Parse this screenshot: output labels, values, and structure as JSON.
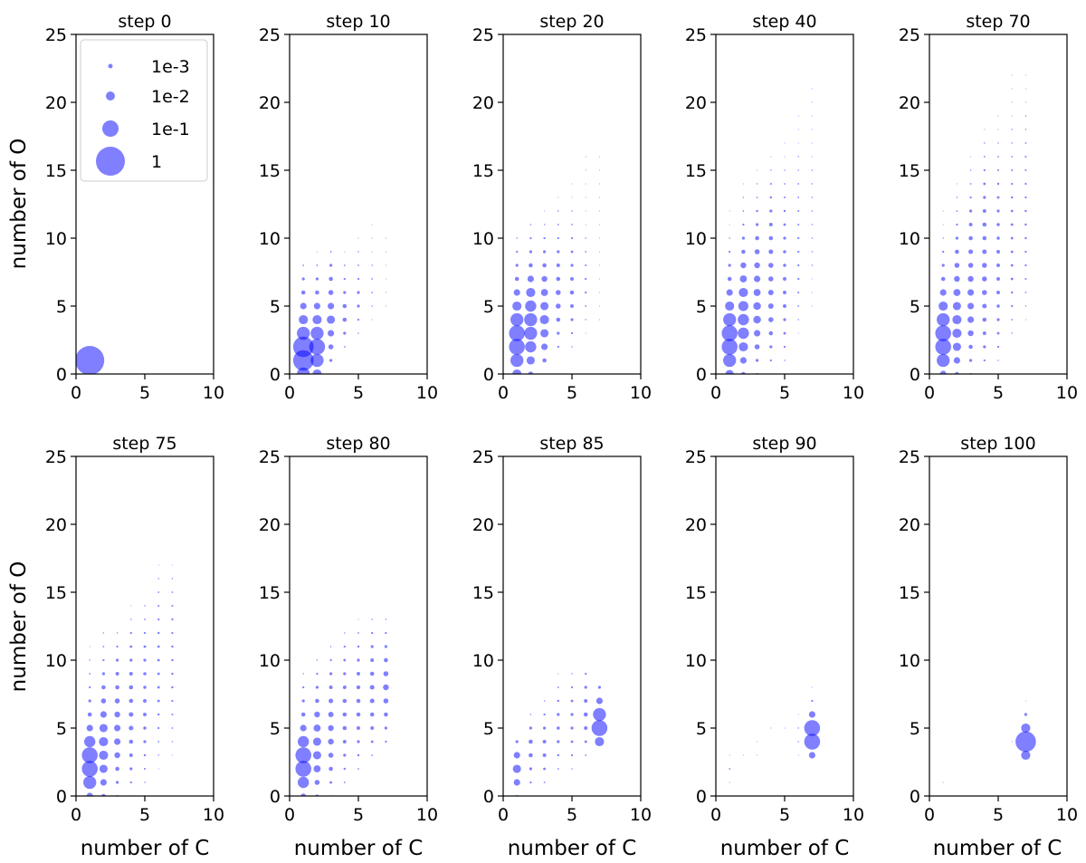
{
  "figure": {
    "ylabel": "number of O",
    "xlabel": "number of C",
    "legend": {
      "entries": [
        {
          "label": "1e-3",
          "value": 0.001
        },
        {
          "label": "1e-2",
          "value": 0.01
        },
        {
          "label": "1e-1",
          "value": 0.1
        },
        {
          "label": "1",
          "value": 1
        }
      ]
    },
    "marker_color": "#0000ff",
    "marker_opacity": 0.5
  },
  "chart_data": [
    {
      "type": "scatter",
      "title": "step 0",
      "xlim": [
        0,
        10
      ],
      "ylim": [
        0,
        25
      ],
      "xticks": [
        "0",
        "5",
        "10"
      ],
      "yticks": [
        "0",
        "5",
        "10",
        "15",
        "20",
        "25"
      ],
      "cols": [
        [
          1,
          1,
          [
            1
          ]
        ]
      ]
    },
    {
      "type": "scatter",
      "title": "step 10",
      "xlim": [
        0,
        10
      ],
      "ylim": [
        0,
        25
      ],
      "xticks": [
        "0",
        "5",
        "10"
      ],
      "yticks": [
        "0",
        "5",
        "10",
        "15",
        "20",
        "25"
      ],
      "cols": [
        [
          1,
          0,
          [
            0.2,
            0.5,
            0.5,
            0.2,
            0.1,
            0.05,
            0.02,
            0.01,
            0.003
          ]
        ],
        [
          2,
          0,
          [
            0.1,
            0.2,
            0.3,
            0.2,
            0.1,
            0.05,
            0.02,
            0.01,
            0.003,
            0.001
          ]
        ],
        [
          3,
          1,
          [
            0.01,
            0.03,
            0.05,
            0.08,
            0.05,
            0.03,
            0.02,
            0.01,
            0.003
          ]
        ],
        [
          4,
          2,
          [
            0.003,
            0.01,
            0.02,
            0.02,
            0.01,
            0.005,
            0.003,
            0.001
          ]
        ],
        [
          5,
          3,
          [
            0.002,
            0.005,
            0.01,
            0.01,
            0.005,
            0.003,
            0.002,
            0.001
          ]
        ],
        [
          6,
          4,
          [
            0.001,
            0.002,
            0.003,
            0.003,
            0.002,
            0.001,
            0.001,
            0.001
          ]
        ],
        [
          7,
          5,
          [
            0.001,
            0.001,
            0.001,
            0.001,
            0.001,
            0.001
          ]
        ]
      ]
    },
    {
      "type": "scatter",
      "title": "step 20",
      "xlim": [
        0,
        10
      ],
      "ylim": [
        0,
        25
      ],
      "xticks": [
        "0",
        "5",
        "10"
      ],
      "yticks": [
        "0",
        "5",
        "10",
        "15",
        "20",
        "25"
      ],
      "cols": [
        [
          1,
          0,
          [
            0.1,
            0.2,
            0.3,
            0.3,
            0.2,
            0.1,
            0.05,
            0.02,
            0.01,
            0.005,
            0.002
          ]
        ],
        [
          2,
          0,
          [
            0.03,
            0.08,
            0.15,
            0.2,
            0.2,
            0.15,
            0.1,
            0.05,
            0.02,
            0.01,
            0.005,
            0.002
          ]
        ],
        [
          3,
          1,
          [
            0.02,
            0.05,
            0.08,
            0.1,
            0.08,
            0.06,
            0.04,
            0.02,
            0.01,
            0.005,
            0.002,
            0.001
          ]
        ],
        [
          4,
          2,
          [
            0.005,
            0.01,
            0.02,
            0.03,
            0.03,
            0.02,
            0.015,
            0.01,
            0.005,
            0.003,
            0.002,
            0.001
          ]
        ],
        [
          5,
          2,
          [
            0.002,
            0.005,
            0.01,
            0.015,
            0.02,
            0.015,
            0.01,
            0.008,
            0.005,
            0.003,
            0.002,
            0.001,
            0.001
          ]
        ],
        [
          6,
          3,
          [
            0.001,
            0.002,
            0.003,
            0.005,
            0.005,
            0.004,
            0.003,
            0.002,
            0.001,
            0.001,
            0.001,
            0.001,
            0.001,
            0.001
          ]
        ],
        [
          7,
          4,
          [
            0.001,
            0.001,
            0.001,
            0.001,
            0.001,
            0.001,
            0.001,
            0.001,
            0.001,
            0.001,
            0.001,
            0.001,
            0.001
          ]
        ]
      ]
    },
    {
      "type": "scatter",
      "title": "step 40",
      "xlim": [
        0,
        10
      ],
      "ylim": [
        0,
        25
      ],
      "xticks": [
        "0",
        "5",
        "10"
      ],
      "yticks": [
        "0",
        "5",
        "10",
        "15",
        "20",
        "25"
      ],
      "cols": [
        [
          1,
          0,
          [
            0.08,
            0.2,
            0.3,
            0.3,
            0.2,
            0.1,
            0.05,
            0.02,
            0.01,
            0.005,
            0.002,
            0.001,
            0.001
          ]
        ],
        [
          2,
          0,
          [
            0.02,
            0.05,
            0.1,
            0.15,
            0.15,
            0.12,
            0.1,
            0.06,
            0.04,
            0.02,
            0.01,
            0.005,
            0.003,
            0.002,
            0.001
          ]
        ],
        [
          3,
          0,
          [
            0.005,
            0.01,
            0.03,
            0.05,
            0.07,
            0.07,
            0.06,
            0.05,
            0.04,
            0.03,
            0.02,
            0.01,
            0.006,
            0.003,
            0.002,
            0.001
          ]
        ],
        [
          4,
          0,
          [
            0.002,
            0.005,
            0.01,
            0.02,
            0.03,
            0.035,
            0.035,
            0.03,
            0.03,
            0.025,
            0.02,
            0.015,
            0.01,
            0.006,
            0.004,
            0.002,
            0.001
          ]
        ],
        [
          5,
          1,
          [
            0.002,
            0.005,
            0.008,
            0.01,
            0.015,
            0.015,
            0.015,
            0.012,
            0.012,
            0.01,
            0.008,
            0.006,
            0.004,
            0.003,
            0.002,
            0.001,
            0.001
          ]
        ],
        [
          6,
          3,
          [
            0.001,
            0.002,
            0.003,
            0.004,
            0.005,
            0.005,
            0.005,
            0.005,
            0.004,
            0.004,
            0.003,
            0.003,
            0.002,
            0.002,
            0.001,
            0.001,
            0.001
          ]
        ],
        [
          7,
          5,
          [
            0.001,
            0.001,
            0.001,
            0.002,
            0.002,
            0.002,
            0.002,
            0.002,
            0.002,
            0.002,
            0.002,
            0.001,
            0.001,
            0.001,
            0.001,
            0.001,
            0.001
          ]
        ]
      ]
    },
    {
      "type": "scatter",
      "title": "step 70",
      "xlim": [
        0,
        10
      ],
      "ylim": [
        0,
        25
      ],
      "xticks": [
        "0",
        "5",
        "10"
      ],
      "yticks": [
        "0",
        "5",
        "10",
        "15",
        "20",
        "25"
      ],
      "cols": [
        [
          1,
          0,
          [
            0.05,
            0.2,
            0.3,
            0.3,
            0.2,
            0.1,
            0.05,
            0.02,
            0.01,
            0.005,
            0.002,
            0.001,
            0.001
          ]
        ],
        [
          2,
          0,
          [
            0.02,
            0.05,
            0.08,
            0.1,
            0.1,
            0.08,
            0.06,
            0.04,
            0.03,
            0.02,
            0.01,
            0.005,
            0.003,
            0.002,
            0.001
          ]
        ],
        [
          3,
          0,
          [
            0.005,
            0.01,
            0.02,
            0.04,
            0.05,
            0.05,
            0.05,
            0.04,
            0.03,
            0.025,
            0.02,
            0.015,
            0.01,
            0.005,
            0.003,
            0.002,
            0.001
          ]
        ],
        [
          4,
          0,
          [
            0.002,
            0.005,
            0.01,
            0.015,
            0.02,
            0.025,
            0.03,
            0.03,
            0.03,
            0.025,
            0.02,
            0.02,
            0.015,
            0.01,
            0.008,
            0.005,
            0.003,
            0.002,
            0.001
          ]
        ],
        [
          5,
          1,
          [
            0.002,
            0.005,
            0.008,
            0.01,
            0.012,
            0.015,
            0.015,
            0.015,
            0.015,
            0.012,
            0.012,
            0.01,
            0.008,
            0.006,
            0.004,
            0.003,
            0.002,
            0.001,
            0.001
          ]
        ],
        [
          6,
          3,
          [
            0.002,
            0.003,
            0.005,
            0.006,
            0.008,
            0.008,
            0.008,
            0.008,
            0.008,
            0.007,
            0.006,
            0.005,
            0.004,
            0.003,
            0.002,
            0.002,
            0.001,
            0.001,
            0.001,
            0.001
          ]
        ],
        [
          7,
          4,
          [
            0.001,
            0.002,
            0.003,
            0.004,
            0.005,
            0.005,
            0.006,
            0.006,
            0.006,
            0.005,
            0.005,
            0.004,
            0.004,
            0.003,
            0.002,
            0.002,
            0.001,
            0.001,
            0.001
          ]
        ]
      ]
    },
    {
      "type": "scatter",
      "title": "step 75",
      "xlim": [
        0,
        10
      ],
      "ylim": [
        0,
        25
      ],
      "xticks": [
        "0",
        "5",
        "10"
      ],
      "yticks": [
        "0",
        "5",
        "10",
        "15",
        "20",
        "25"
      ],
      "cols": [
        [
          1,
          0,
          [
            0.05,
            0.2,
            0.3,
            0.3,
            0.15,
            0.05,
            0.02,
            0.01,
            0.005,
            0.003,
            0.002,
            0.001
          ]
        ],
        [
          2,
          0,
          [
            0.02,
            0.05,
            0.08,
            0.1,
            0.1,
            0.08,
            0.05,
            0.03,
            0.02,
            0.01,
            0.005,
            0.003,
            0.002
          ]
        ],
        [
          3,
          0,
          [
            0.005,
            0.01,
            0.02,
            0.04,
            0.05,
            0.05,
            0.04,
            0.03,
            0.02,
            0.015,
            0.01,
            0.005,
            0.002
          ]
        ],
        [
          4,
          0,
          [
            0.002,
            0.005,
            0.01,
            0.015,
            0.02,
            0.025,
            0.025,
            0.02,
            0.02,
            0.015,
            0.01,
            0.008,
            0.005,
            0.002,
            0.001
          ]
        ],
        [
          5,
          1,
          [
            0.002,
            0.004,
            0.006,
            0.01,
            0.012,
            0.015,
            0.015,
            0.012,
            0.012,
            0.01,
            0.008,
            0.005,
            0.003,
            0.002
          ]
        ],
        [
          6,
          2,
          [
            0.001,
            0.002,
            0.003,
            0.005,
            0.006,
            0.008,
            0.008,
            0.008,
            0.008,
            0.007,
            0.006,
            0.005,
            0.004,
            0.003,
            0.002,
            0.001
          ]
        ],
        [
          7,
          3,
          [
            0.001,
            0.002,
            0.003,
            0.004,
            0.005,
            0.006,
            0.006,
            0.006,
            0.006,
            0.005,
            0.005,
            0.004,
            0.003,
            0.002,
            0.001
          ]
        ]
      ]
    },
    {
      "type": "scatter",
      "title": "step 80",
      "xlim": [
        0,
        10
      ],
      "ylim": [
        0,
        25
      ],
      "xticks": [
        "0",
        "5",
        "10"
      ],
      "yticks": [
        "0",
        "5",
        "10",
        "15",
        "20",
        "25"
      ],
      "cols": [
        [
          1,
          0,
          [
            0.03,
            0.15,
            0.3,
            0.3,
            0.15,
            0.05,
            0.02,
            0.01,
            0.005,
            0.002
          ]
        ],
        [
          2,
          0,
          [
            0.01,
            0.03,
            0.06,
            0.08,
            0.08,
            0.06,
            0.04,
            0.02,
            0.01,
            0.005,
            0.002
          ]
        ],
        [
          3,
          0,
          [
            0.003,
            0.008,
            0.02,
            0.03,
            0.04,
            0.04,
            0.035,
            0.025,
            0.015,
            0.01,
            0.005,
            0.002
          ]
        ],
        [
          4,
          1,
          [
            0.003,
            0.006,
            0.01,
            0.015,
            0.02,
            0.02,
            0.02,
            0.015,
            0.01,
            0.008,
            0.005,
            0.002
          ]
        ],
        [
          5,
          2,
          [
            0.003,
            0.006,
            0.01,
            0.015,
            0.02,
            0.02,
            0.018,
            0.015,
            0.01,
            0.006,
            0.003,
            0.001
          ]
        ],
        [
          6,
          3,
          [
            0.003,
            0.008,
            0.015,
            0.02,
            0.025,
            0.025,
            0.02,
            0.015,
            0.01,
            0.005,
            0.002
          ]
        ],
        [
          7,
          4,
          [
            0.005,
            0.01,
            0.02,
            0.03,
            0.04,
            0.03,
            0.02,
            0.01,
            0.005,
            0.002
          ]
        ]
      ]
    },
    {
      "type": "scatter",
      "title": "step 85",
      "xlim": [
        0,
        10
      ],
      "ylim": [
        0,
        25
      ],
      "xticks": [
        "0",
        "5",
        "10"
      ],
      "yticks": [
        "0",
        "5",
        "10",
        "15",
        "20",
        "25"
      ],
      "cols": [
        [
          1,
          0,
          [
            0.005,
            0.05,
            0.08,
            0.05,
            0.01
          ]
        ],
        [
          2,
          1,
          [
            0.005,
            0.01,
            0.02,
            0.02,
            0.01,
            0.002
          ]
        ],
        [
          3,
          1,
          [
            0.003,
            0.008,
            0.015,
            0.015,
            0.01,
            0.005,
            0.002
          ]
        ],
        [
          4,
          2,
          [
            0.003,
            0.006,
            0.01,
            0.012,
            0.01,
            0.006,
            0.003,
            0.001
          ]
        ],
        [
          5,
          2,
          [
            0.002,
            0.005,
            0.008,
            0.01,
            0.01,
            0.008,
            0.005,
            0.002
          ]
        ],
        [
          6,
          3,
          [
            0.003,
            0.008,
            0.015,
            0.02,
            0.015,
            0.01,
            0.005
          ]
        ],
        [
          7,
          4,
          [
            0.1,
            0.3,
            0.2,
            0.05,
            0.01
          ]
        ]
      ]
    },
    {
      "type": "scatter",
      "title": "step 90",
      "xlim": [
        0,
        10
      ],
      "ylim": [
        0,
        25
      ],
      "xticks": [
        "0",
        "5",
        "10"
      ],
      "yticks": [
        "0",
        "5",
        "10",
        "15",
        "20",
        "25"
      ],
      "cols": [
        [
          1,
          1,
          [
            0.001,
            0.003,
            0.001
          ]
        ],
        [
          2,
          3,
          [
            0.001
          ]
        ],
        [
          3,
          3,
          [
            0.001,
            0.001
          ]
        ],
        [
          4,
          5,
          [
            0.001
          ]
        ],
        [
          5,
          5,
          [
            0.001
          ]
        ],
        [
          6,
          3,
          [
            0.001,
            0.002,
            0.002,
            0.001
          ]
        ],
        [
          7,
          3,
          [
            0.05,
            0.3,
            0.3,
            0.05,
            0.005,
            0.001
          ]
        ]
      ]
    },
    {
      "type": "scatter",
      "title": "step 100",
      "xlim": [
        0,
        10
      ],
      "ylim": [
        0,
        25
      ],
      "xticks": [
        "0",
        "5",
        "10"
      ],
      "yticks": [
        "0",
        "5",
        "10",
        "15",
        "20",
        "25"
      ],
      "cols": [
        [
          1,
          1,
          [
            0.001
          ]
        ],
        [
          6,
          4,
          [
            0.001
          ]
        ],
        [
          7,
          3,
          [
            0.1,
            0.5,
            0.1,
            0.01,
            0.001
          ]
        ]
      ]
    }
  ]
}
